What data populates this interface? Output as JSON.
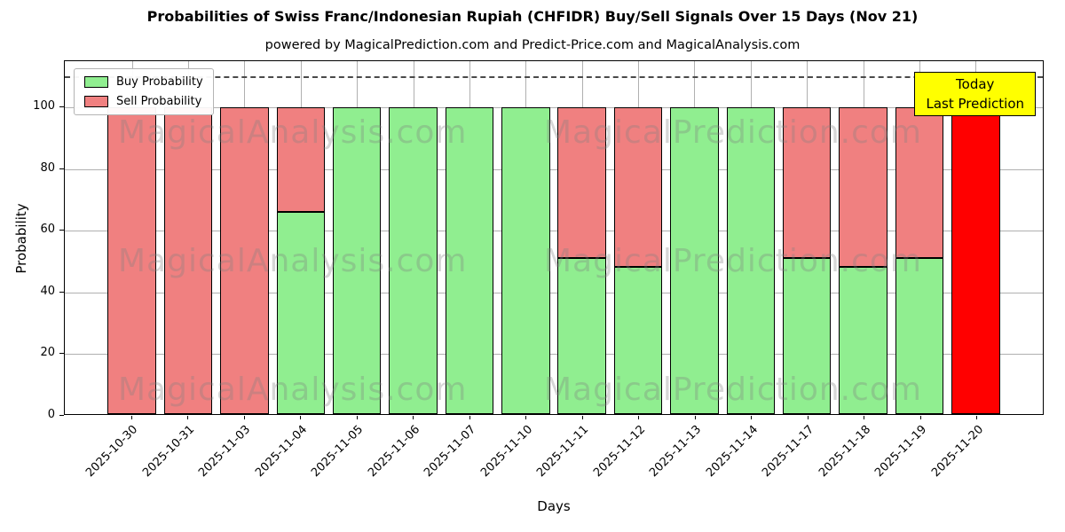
{
  "chart": {
    "title": "Probabilities of Swiss Franc/Indonesian Rupiah (CHFIDR) Buy/Sell Signals Over 15 Days (Nov 21)",
    "subtitle": "powered by MagicalPrediction.com and Predict-Price.com and MagicalAnalysis.com",
    "xlabel": "Days",
    "ylabel": "Probability",
    "annotation": {
      "line1": "Today",
      "line2": "Last Prediction",
      "bg_color": "#ffff00"
    },
    "watermarks": [
      "MagicalAnalysis.com",
      "MagicalPrediction.com"
    ]
  },
  "chart_data": {
    "type": "bar",
    "stacked": true,
    "title": "Probabilities of Swiss Franc/Indonesian Rupiah (CHFIDR) Buy/Sell Signals Over 15 Days (Nov 21)",
    "xlabel": "Days",
    "ylabel": "Probability",
    "categories": [
      "2025-10-30",
      "2025-10-31",
      "2025-11-03",
      "2025-11-04",
      "2025-11-05",
      "2025-11-06",
      "2025-11-07",
      "2025-11-10",
      "2025-11-11",
      "2025-11-12",
      "2025-11-13",
      "2025-11-14",
      "2025-11-17",
      "2025-11-18",
      "2025-11-19",
      "2025-11-20"
    ],
    "series": [
      {
        "name": "Buy Probability",
        "color": "#90ee90",
        "values": [
          0,
          0,
          0,
          66,
          100,
          100,
          100,
          100,
          51,
          48,
          100,
          100,
          51,
          48,
          51,
          0
        ]
      },
      {
        "name": "Sell Probability",
        "color": "#f08080",
        "values": [
          100,
          100,
          100,
          34,
          0,
          0,
          0,
          0,
          49,
          52,
          0,
          0,
          49,
          52,
          49,
          100
        ]
      }
    ],
    "highlight": {
      "index": 15,
      "color": "#ff0000",
      "note": "Today / Last Prediction"
    },
    "ylim": [
      0,
      115
    ],
    "yticks": [
      0,
      20,
      40,
      60,
      80,
      100
    ],
    "dashed_line_y": 110,
    "grid": true,
    "legend_position": "upper left",
    "bar_edge_color": "#000000"
  }
}
